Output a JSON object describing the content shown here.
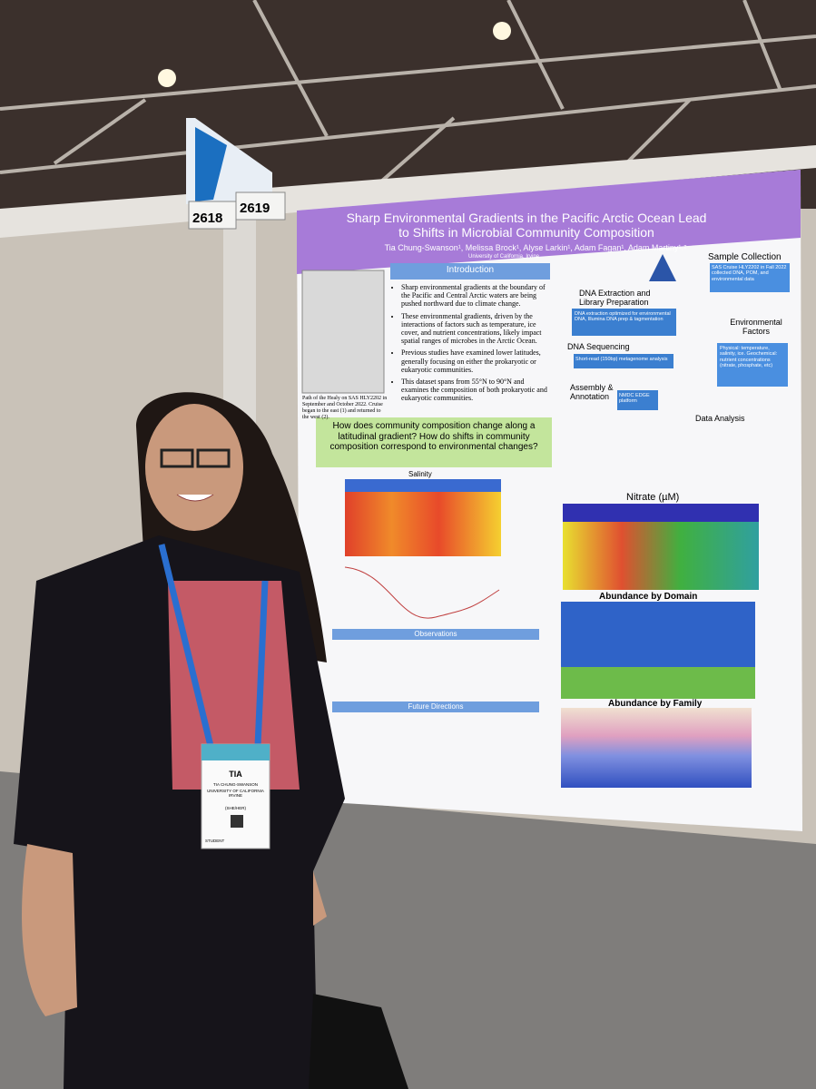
{
  "booth_numbers": [
    "2618",
    "2619"
  ],
  "poster": {
    "title": "Sharp Environmental Gradients in the Pacific Arctic Ocean Lead to Shifts in Microbial Community Composition",
    "authors": "Tia Chung-Swanson¹, Melissa Brock¹, Alyse Larkin¹, Adam Fagan¹, Adam Martiny¹˒²",
    "affiliation": "University of California, Irvine",
    "map_caption": "Path of the Healy on SAS HLY2202 in September and October 2022. Cruise began to the east (1) and returned to the west (2).",
    "introduction": {
      "heading": "Introduction",
      "bullets": [
        "Sharp environmental gradients at the boundary of the Pacific and Central Arctic waters are being pushed northward due to climate change.",
        "These environmental gradients, driven by the interactions of factors such as temperature, ice cover, and nutrient concentrations, likely impact spatial ranges of microbes in the Arctic Ocean.",
        "Previous studies have examined lower latitudes, generally focusing on either the prokaryotic or eukaryotic communities.",
        "This dataset spans from 55°N to 90°N and examines the composition of both prokaryotic and eukaryotic communities."
      ]
    },
    "question": "How does community composition change along a latitudinal gradient? How do shifts in community composition correspond to environmental changes?",
    "workflow": {
      "sample_collection": "Sample Collection",
      "sample_note": "SAS Cruise HLY2202 in Fall 2022 collected DNA, POM, and environmental data",
      "extraction": "DNA Extraction and Library Preparation",
      "extraction_note": "DNA extraction optimized for environmental DNA, Illumina DNA prep & tagmentation",
      "sequencing": "DNA Sequencing",
      "sequencing_note": "Short-read (150bp) metagenome analysis",
      "assembly": "Assembly & Annotation",
      "assembly_note": "NMDC EDGE platform",
      "analysis": "Data Analysis",
      "environment": "Environmental Factors",
      "environment_note": "Physical: temperature, salinity, ice. Geochemical: nutrient concentrations (nitrate, phosphate, etc)"
    },
    "panels": {
      "salinity": "Salinity",
      "nitrate": "Nitrate (µM)",
      "domain": "Abundance by Domain",
      "family": "Abundance by Family"
    },
    "sections": {
      "observations": "Observations",
      "future": "Future Directions"
    }
  },
  "badge": {
    "name": "TIA",
    "full_name": "TIA CHUNG-SWANSON",
    "org": "UNIVERSITY OF CALIFORNIA IRVINE",
    "pronouns": "(SHE/HER)",
    "role": "STUDENT"
  }
}
